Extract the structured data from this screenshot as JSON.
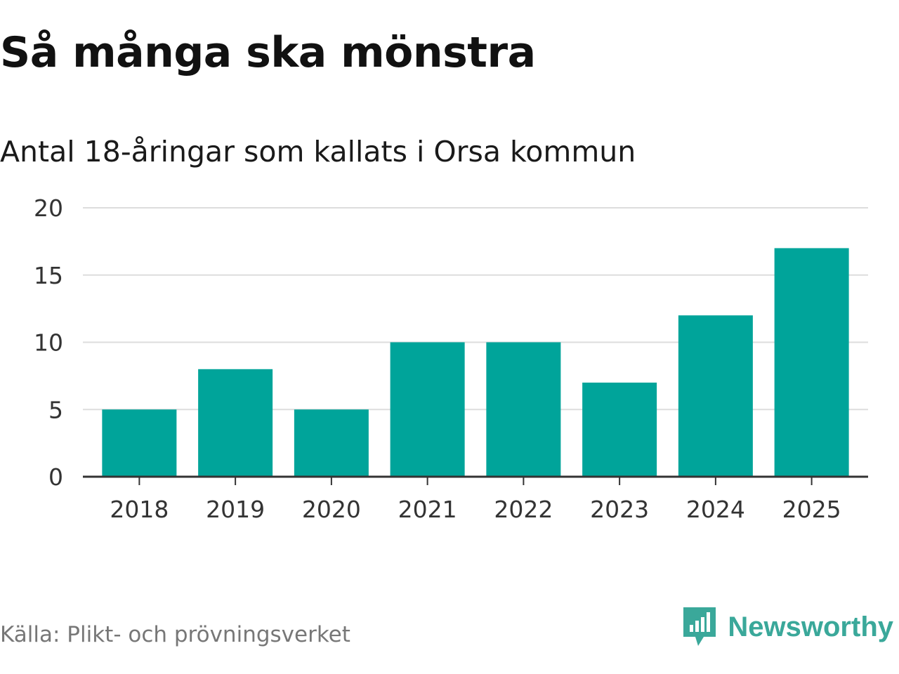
{
  "header": {
    "title": "Så många ska mönstra",
    "subtitle": "Antal 18-åringar som kallats i Orsa kommun"
  },
  "footer": {
    "source": "Källa: Plikt- och prövningsverket",
    "brand": "Newsworthy",
    "brand_color": "#3aa89a"
  },
  "chart_data": {
    "type": "bar",
    "title": "Så många ska mönstra",
    "subtitle": "Antal 18-åringar som kallats i Orsa kommun",
    "categories": [
      "2018",
      "2019",
      "2020",
      "2021",
      "2022",
      "2023",
      "2024",
      "2025"
    ],
    "values": [
      5,
      8,
      5,
      10,
      10,
      7,
      12,
      17
    ],
    "xlabel": "",
    "ylabel": "",
    "ylim": [
      0,
      20
    ],
    "yticks": [
      0,
      5,
      10,
      15,
      20
    ],
    "grid": true,
    "bar_color": "#00a49a"
  }
}
